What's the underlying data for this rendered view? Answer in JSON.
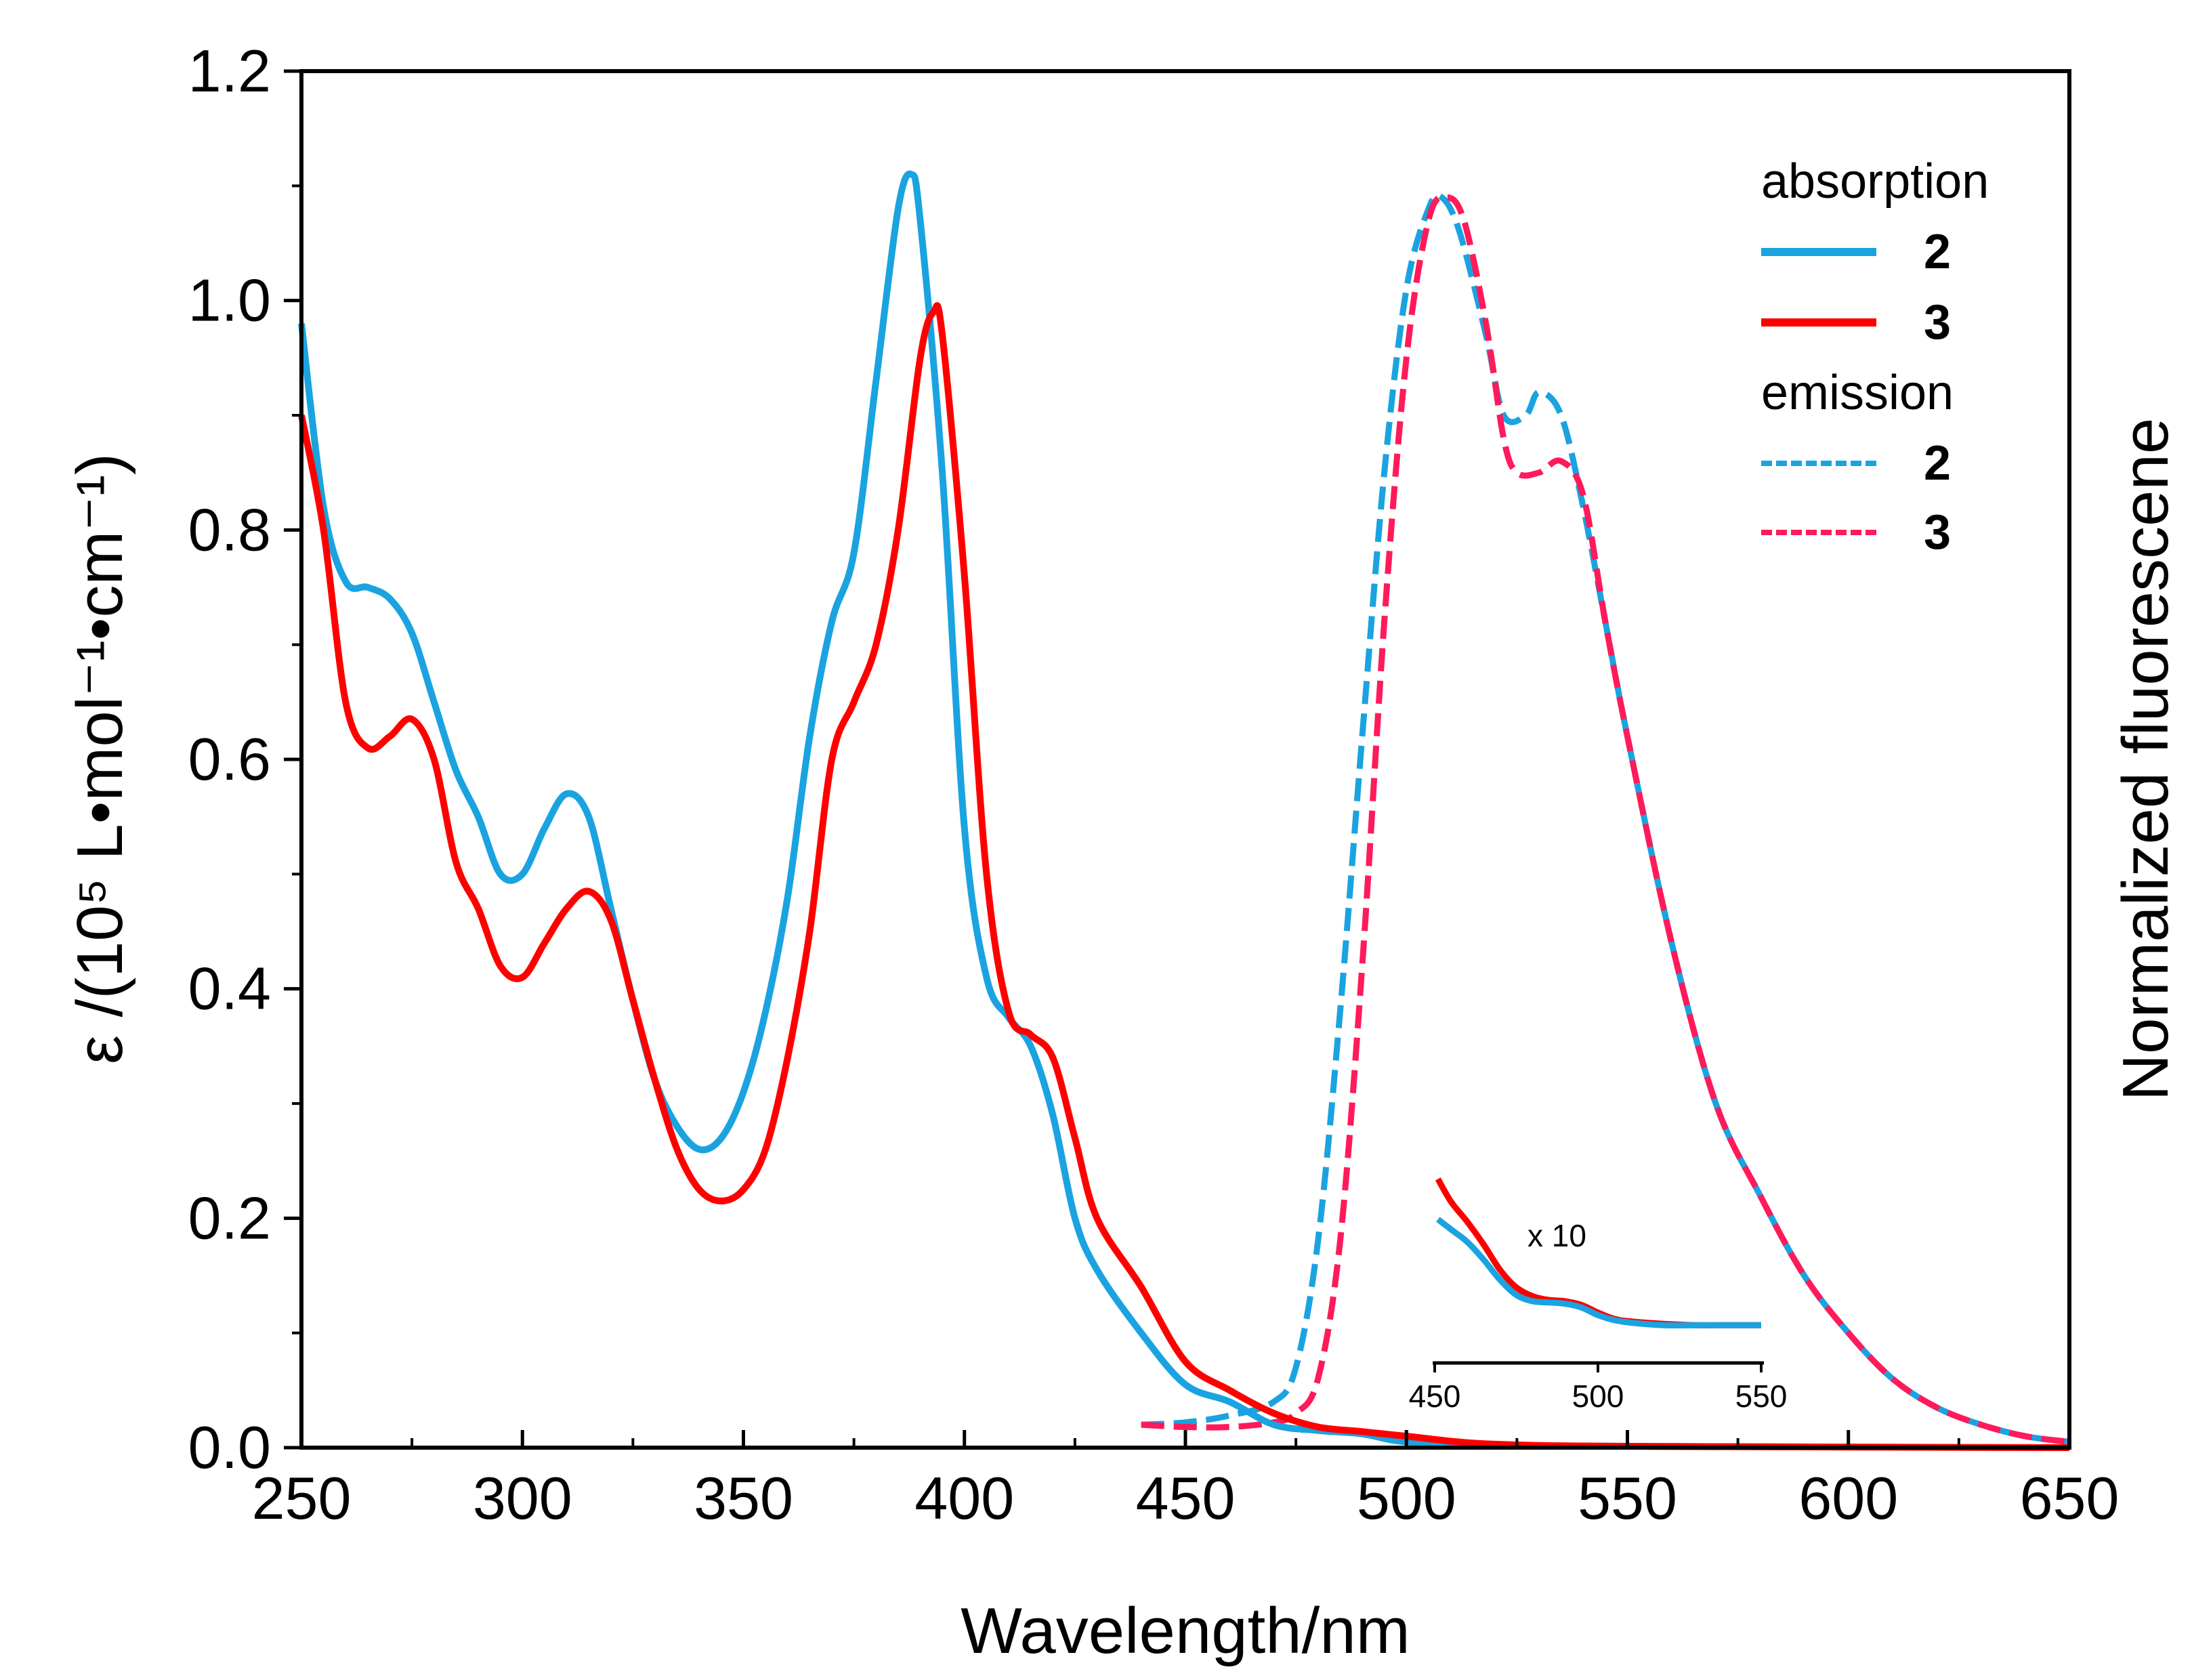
{
  "chart_data": {
    "type": "line",
    "xlabel": "Wavelength/nm",
    "ylabel_left": "ε /(10⁵ L•mol⁻¹•cm⁻¹)",
    "ylabel_right": "Normalized fluorescene",
    "xlim": [
      250,
      650
    ],
    "ylim": [
      0,
      1.2
    ],
    "xticks": [
      "250",
      "300",
      "350",
      "400",
      "450",
      "500",
      "550",
      "600",
      "650"
    ],
    "yticks": [
      "0.0",
      "0.2",
      "0.4",
      "0.6",
      "0.8",
      "1.0",
      "1.2"
    ],
    "grid": false,
    "legend_position": "top-right",
    "legend": [
      {
        "group": "absorption",
        "entries": [
          {
            "label": "2",
            "color": "#1aa3e0",
            "style": "solid"
          },
          {
            "label": "3",
            "color": "#ff0000",
            "style": "solid"
          }
        ]
      },
      {
        "group": "emission",
        "entries": [
          {
            "label": "2",
            "color": "#1aa3e0",
            "style": "dashed"
          },
          {
            "label": "3",
            "color": "#ff1a5a",
            "style": "dashed"
          }
        ]
      }
    ],
    "series": [
      {
        "name": "absorption 2",
        "color": "#1aa3e0",
        "style": "solid",
        "x": [
          250,
          255,
          260,
          265,
          270,
          275,
          280,
          285,
          290,
          295,
          300,
          305,
          310,
          315,
          320,
          325,
          330,
          335,
          340,
          345,
          350,
          355,
          360,
          365,
          370,
          375,
          380,
          385,
          388,
          390,
          395,
          400,
          405,
          410,
          415,
          420,
          425,
          430,
          440,
          450,
          460,
          470,
          480,
          490,
          500,
          520,
          560,
          650
        ],
        "y": [
          0.98,
          0.82,
          0.755,
          0.75,
          0.74,
          0.71,
          0.65,
          0.59,
          0.55,
          0.5,
          0.5,
          0.54,
          0.57,
          0.55,
          0.47,
          0.39,
          0.32,
          0.28,
          0.26,
          0.27,
          0.31,
          0.38,
          0.48,
          0.62,
          0.72,
          0.78,
          0.93,
          1.08,
          1.11,
          1.07,
          0.85,
          0.54,
          0.41,
          0.375,
          0.35,
          0.29,
          0.2,
          0.155,
          0.1,
          0.055,
          0.04,
          0.02,
          0.015,
          0.012,
          0.005,
          0.002,
          0.001,
          0.0
        ]
      },
      {
        "name": "absorption 3",
        "color": "#ff0000",
        "style": "solid",
        "x": [
          250,
          255,
          260,
          265,
          270,
          275,
          280,
          285,
          290,
          295,
          300,
          305,
          310,
          315,
          320,
          325,
          330,
          335,
          340,
          345,
          350,
          355,
          360,
          365,
          370,
          375,
          380,
          385,
          390,
          393,
          395,
          400,
          405,
          410,
          415,
          420,
          425,
          430,
          440,
          450,
          460,
          470,
          480,
          490,
          500,
          520,
          560,
          650
        ],
        "y": [
          0.9,
          0.8,
          0.65,
          0.61,
          0.62,
          0.635,
          0.6,
          0.51,
          0.47,
          0.42,
          0.41,
          0.44,
          0.47,
          0.485,
          0.46,
          0.39,
          0.32,
          0.26,
          0.225,
          0.215,
          0.225,
          0.26,
          0.34,
          0.45,
          0.6,
          0.65,
          0.7,
          0.8,
          0.95,
          0.99,
          0.97,
          0.76,
          0.5,
          0.38,
          0.36,
          0.34,
          0.27,
          0.2,
          0.14,
          0.075,
          0.05,
          0.03,
          0.018,
          0.014,
          0.01,
          0.003,
          0.001,
          0.0
        ]
      },
      {
        "name": "emission 2",
        "color": "#1aa3e0",
        "style": "dashed",
        "x": [
          440,
          450,
          460,
          470,
          475,
          480,
          485,
          490,
          495,
          500,
          505,
          508,
          512,
          518,
          522,
          527,
          530,
          535,
          540,
          545,
          550,
          560,
          570,
          580,
          590,
          600,
          610,
          620,
          630,
          640,
          650
        ],
        "y": [
          0.02,
          0.022,
          0.028,
          0.04,
          0.07,
          0.18,
          0.38,
          0.62,
          0.85,
          1.01,
          1.08,
          1.09,
          1.06,
          0.97,
          0.9,
          0.9,
          0.92,
          0.9,
          0.82,
          0.72,
          0.62,
          0.44,
          0.3,
          0.22,
          0.15,
          0.1,
          0.06,
          0.035,
          0.02,
          0.01,
          0.005
        ]
      },
      {
        "name": "emission 3",
        "color": "#ff1a5a",
        "style": "dashed",
        "x": [
          440,
          450,
          460,
          470,
          475,
          480,
          485,
          490,
          495,
          500,
          505,
          509,
          513,
          518,
          522,
          525,
          530,
          535,
          540,
          545,
          550,
          560,
          570,
          580,
          590,
          600,
          610,
          620,
          630,
          640,
          650
        ],
        "y": [
          0.02,
          0.018,
          0.018,
          0.022,
          0.03,
          0.06,
          0.18,
          0.42,
          0.72,
          0.95,
          1.07,
          1.09,
          1.07,
          0.98,
          0.88,
          0.85,
          0.85,
          0.86,
          0.83,
          0.72,
          0.62,
          0.44,
          0.3,
          0.22,
          0.15,
          0.1,
          0.06,
          0.035,
          0.02,
          0.01,
          0.005
        ]
      }
    ],
    "inset": {
      "label": "x 10",
      "xlim": [
        450,
        550
      ],
      "xticks": [
        "450",
        "500",
        "550"
      ],
      "series": [
        {
          "name": "absorption 2 x10",
          "color": "#1aa3e0",
          "x": [
            451,
            455,
            460,
            465,
            470,
            475,
            480,
            485,
            490,
            495,
            500,
            505,
            510,
            520,
            530,
            540,
            550
          ],
          "y": [
            0.57,
            0.53,
            0.48,
            0.41,
            0.33,
            0.27,
            0.245,
            0.24,
            0.235,
            0.22,
            0.19,
            0.17,
            0.16,
            0.15,
            0.15,
            0.15,
            0.15
          ]
        },
        {
          "name": "absorption 3 x10",
          "color": "#ff0000",
          "x": [
            451,
            455,
            460,
            465,
            470,
            475,
            480,
            485,
            490,
            495,
            500,
            505,
            510,
            520,
            530,
            540,
            550
          ],
          "y": [
            0.73,
            0.64,
            0.56,
            0.47,
            0.37,
            0.3,
            0.265,
            0.25,
            0.245,
            0.23,
            0.2,
            0.175,
            0.165,
            0.155,
            0.15,
            0.15,
            0.15
          ]
        }
      ]
    }
  }
}
